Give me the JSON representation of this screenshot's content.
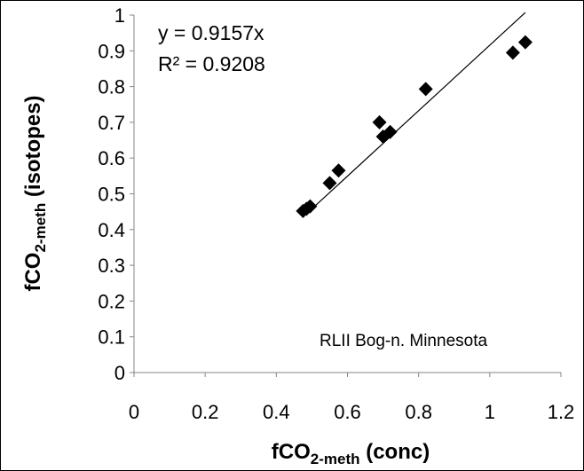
{
  "chart_data": {
    "type": "scatter",
    "xlabel": {
      "base": "fCO",
      "sub": "2-meth",
      "suffix": " (conc)"
    },
    "ylabel": {
      "base": "fCO",
      "sub": "2-meth",
      "suffix": " (isotopes)"
    },
    "xlim": [
      0,
      1.2
    ],
    "ylim": [
      0,
      1
    ],
    "x_ticks": [
      "0",
      "0.2",
      "0.4",
      "0.6",
      "0.8",
      "1",
      "1.2"
    ],
    "y_ticks": [
      "0",
      "0.1",
      "0.2",
      "0.3",
      "0.4",
      "0.5",
      "0.6",
      "0.7",
      "0.8",
      "0.9",
      "1"
    ],
    "grid": false,
    "series": [
      {
        "marker": "diamond",
        "color": "#000000",
        "points": [
          {
            "x": 0.475,
            "y": 0.452
          },
          {
            "x": 0.485,
            "y": 0.458
          },
          {
            "x": 0.495,
            "y": 0.465
          },
          {
            "x": 0.55,
            "y": 0.53
          },
          {
            "x": 0.575,
            "y": 0.565
          },
          {
            "x": 0.69,
            "y": 0.7
          },
          {
            "x": 0.7,
            "y": 0.66
          },
          {
            "x": 0.72,
            "y": 0.673
          },
          {
            "x": 0.82,
            "y": 0.793
          },
          {
            "x": 1.065,
            "y": 0.895
          },
          {
            "x": 1.1,
            "y": 0.924
          }
        ]
      }
    ],
    "trendline": {
      "slope": 0.9157,
      "x_start": 0.5,
      "x_end": 1.1,
      "color": "#000000"
    },
    "annotations": {
      "equation": "y = 0.9157x",
      "r2": "R² = 0.9208",
      "site": "RLII Bog-n. Minnesota"
    }
  }
}
